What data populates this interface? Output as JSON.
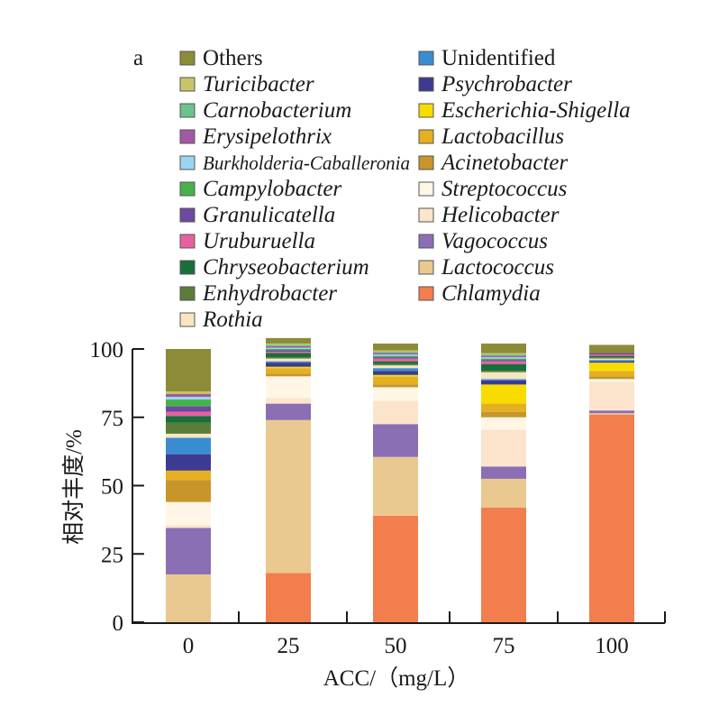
{
  "chart_data": {
    "type": "bar",
    "stacked": true,
    "panel_label": "a",
    "title": "",
    "xlabel": "ACC/（mg/L）",
    "ylabel": "相对丰度/%",
    "ylim": [
      0,
      100
    ],
    "yticks": [
      "0",
      "25",
      "50",
      "75",
      "100"
    ],
    "ytick_values": [
      0,
      25,
      50,
      75,
      100
    ],
    "categories": [
      "0",
      "25",
      "50",
      "75",
      "100"
    ],
    "legend_position": "top",
    "legend": [
      {
        "name": "Others",
        "color": "#8b8b38",
        "italic": false
      },
      {
        "name": "Turicibacter",
        "color": "#c8c46a",
        "italic": true
      },
      {
        "name": "Carnobacterium",
        "color": "#6cc28c",
        "italic": true
      },
      {
        "name": "Erysipelothrix",
        "color": "#a457a4",
        "italic": true
      },
      {
        "name": "Burkholderia-Caballeronia",
        "color": "#9ad6f2",
        "italic": true
      },
      {
        "name": "Campylobacter",
        "color": "#45b24c",
        "italic": true
      },
      {
        "name": "Granulicatella",
        "color": "#6f48a0",
        "italic": true
      },
      {
        "name": "Uruburuella",
        "color": "#e8619f",
        "italic": true
      },
      {
        "name": "Chryseobacterium",
        "color": "#176f3a",
        "italic": true
      },
      {
        "name": "Enhydrobacter",
        "color": "#5a7d3a",
        "italic": true
      },
      {
        "name": "Rothia",
        "color": "#f7e6c0",
        "italic": true
      },
      {
        "name": "Unidentified",
        "color": "#3a8cd0",
        "italic": false
      },
      {
        "name": "Psychrobacter",
        "color": "#3d3a92",
        "italic": true
      },
      {
        "name": "Escherichia-Shigella",
        "color": "#f8dc00",
        "italic": true
      },
      {
        "name": "Lactobacillus",
        "color": "#e4b022",
        "italic": true
      },
      {
        "name": "Acinetobacter",
        "color": "#c8952a",
        "italic": true
      },
      {
        "name": "Streptococcus",
        "color": "#fff6e6",
        "italic": true
      },
      {
        "name": "Helicobacter",
        "color": "#fde4cc",
        "italic": true
      },
      {
        "name": "Vagococcus",
        "color": "#8a6fb4",
        "italic": true
      },
      {
        "name": "Lactococcus",
        "color": "#e9c990",
        "italic": true
      },
      {
        "name": "Chlamydia",
        "color": "#f27e4e",
        "italic": true
      }
    ],
    "series": [
      {
        "name": "Chlamydia",
        "values": [
          0,
          18,
          39,
          42,
          76
        ]
      },
      {
        "name": "Lactococcus",
        "values": [
          17.5,
          56,
          21.5,
          10.5,
          0.5
        ]
      },
      {
        "name": "Vagococcus",
        "values": [
          17,
          6,
          12,
          4.5,
          1
        ]
      },
      {
        "name": "Helicobacter",
        "values": [
          1,
          2,
          8.5,
          13.5,
          10.5
        ]
      },
      {
        "name": "Streptococcus",
        "values": [
          8.5,
          8,
          5,
          4.5,
          1
        ]
      },
      {
        "name": "Acinetobacter",
        "values": [
          8,
          1,
          1,
          2,
          1
        ]
      },
      {
        "name": "Lactobacillus",
        "values": [
          3.5,
          2,
          3,
          3,
          2
        ]
      },
      {
        "name": "Escherichia-Shigella",
        "values": [
          0,
          0.5,
          0.5,
          7,
          3
        ]
      },
      {
        "name": "Psychrobacter",
        "values": [
          6,
          1.5,
          1.5,
          1.5,
          0.5
        ]
      },
      {
        "name": "Unidentified",
        "values": [
          6,
          0.5,
          1,
          0.5,
          0.5
        ]
      },
      {
        "name": "Rothia",
        "values": [
          1.5,
          1,
          1,
          2.5,
          0.5
        ]
      },
      {
        "name": "Enhydrobacter",
        "values": [
          4,
          0.5,
          0.5,
          0.5,
          0.5
        ]
      },
      {
        "name": "Chryseobacterium",
        "values": [
          2.5,
          1.5,
          1,
          2.5,
          0.5
        ]
      },
      {
        "name": "Uruburuella",
        "values": [
          1.5,
          0.5,
          1,
          1,
          0.5
        ]
      },
      {
        "name": "Granulicatella",
        "values": [
          2,
          0.5,
          0.5,
          0.5,
          0.5
        ]
      },
      {
        "name": "Campylobacter",
        "values": [
          2.5,
          0.5,
          0.5,
          0.5,
          0
        ]
      },
      {
        "name": "Burkholderia-Caballeronia",
        "values": [
          1,
          0.5,
          0.5,
          0.5,
          0
        ]
      },
      {
        "name": "Erysipelothrix",
        "values": [
          1,
          0.5,
          0.5,
          0.5,
          0
        ]
      },
      {
        "name": "Carnobacterium",
        "values": [
          0,
          0.5,
          0.5,
          0.5,
          0
        ]
      },
      {
        "name": "Turicibacter",
        "values": [
          1,
          0.5,
          0.5,
          0.5,
          0
        ]
      },
      {
        "name": "Others",
        "values": [
          15.5,
          2,
          2.5,
          3.5,
          3
        ]
      }
    ]
  }
}
